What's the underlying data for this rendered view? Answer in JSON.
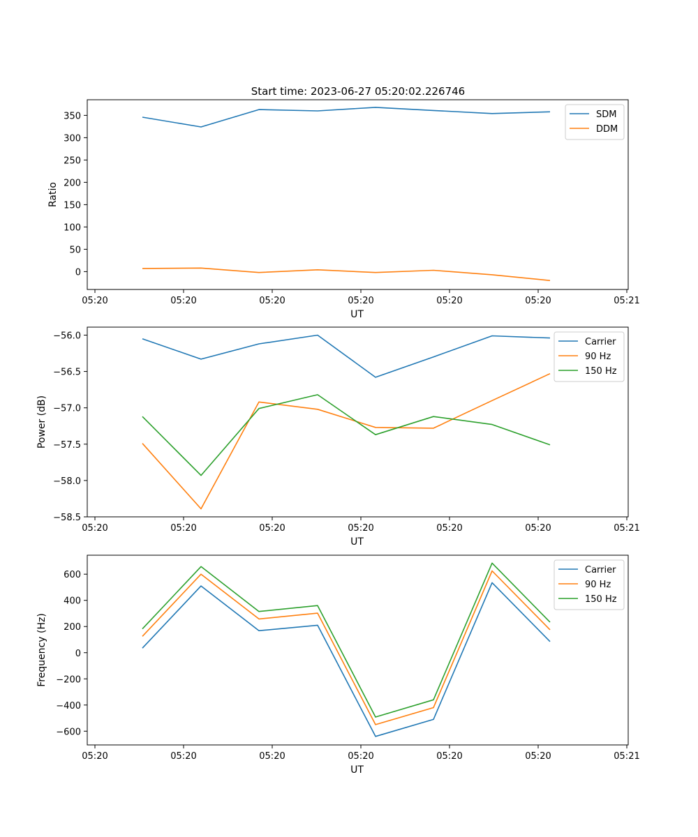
{
  "chart_data": [
    {
      "type": "line",
      "title": "Start time: 2023-06-27 05:20:02.226746",
      "xlabel": "UT",
      "ylabel": "Ratio",
      "x_tick_labels": [
        "05:20",
        "05:20",
        "05:20",
        "05:20",
        "05:20",
        "05:20",
        "05:20",
        "05:21"
      ],
      "y_ticks": [
        0,
        50,
        100,
        150,
        200,
        250,
        300,
        350
      ],
      "y_tick_labels": [
        "0",
        "50",
        "100",
        "150",
        "200",
        "250",
        "300",
        "350"
      ],
      "ylim": [
        -40,
        385
      ],
      "legend_position": "top-right",
      "series": [
        {
          "name": "SDM",
          "color": "#1f77b4",
          "values": [
            346,
            324,
            363,
            360,
            368,
            361,
            354,
            358
          ]
        },
        {
          "name": "DDM",
          "color": "#ff7f0e",
          "values": [
            7,
            8,
            -2,
            4,
            -2,
            3,
            -7,
            -20
          ]
        }
      ]
    },
    {
      "type": "line",
      "xlabel": "UT",
      "ylabel": "Power (dB)",
      "x_tick_labels": [
        "05:20",
        "05:20",
        "05:20",
        "05:20",
        "05:20",
        "05:20",
        "05:20",
        "05:21"
      ],
      "y_ticks": [
        -58.5,
        -58.0,
        -57.5,
        -57.0,
        -56.5,
        -56.0
      ],
      "y_tick_labels": [
        "−58.5",
        "−58.0",
        "−57.5",
        "−57.0",
        "−56.5",
        "−56.0"
      ],
      "ylim": [
        -58.5,
        -55.89
      ],
      "legend_position": "top-right",
      "series": [
        {
          "name": "Carrier",
          "color": "#1f77b4",
          "values": [
            -56.05,
            -56.33,
            -56.12,
            -56.0,
            -56.58,
            -56.3,
            -56.01,
            -56.04
          ]
        },
        {
          "name": "90 Hz",
          "color": "#ff7f0e",
          "values": [
            -57.49,
            -58.39,
            -56.92,
            -57.02,
            -57.27,
            -57.28,
            -56.9,
            -56.53
          ]
        },
        {
          "name": "150 Hz",
          "color": "#2ca02c",
          "values": [
            -57.12,
            -57.93,
            -57.01,
            -56.82,
            -57.37,
            -57.12,
            -57.23,
            -57.51
          ]
        }
      ]
    },
    {
      "type": "line",
      "xlabel": "UT",
      "ylabel": "Frequency (Hz)",
      "x_tick_labels": [
        "05:20",
        "05:20",
        "05:20",
        "05:20",
        "05:20",
        "05:20",
        "05:20",
        "05:21"
      ],
      "y_ticks": [
        -600,
        -400,
        -200,
        0,
        200,
        400,
        600
      ],
      "y_tick_labels": [
        "−600",
        "−400",
        "−200",
        "0",
        "200",
        "400",
        "600"
      ],
      "ylim": [
        -705,
        745
      ],
      "legend_position": "top-right",
      "series": [
        {
          "name": "Carrier",
          "color": "#1f77b4",
          "values": [
            35,
            510,
            168,
            210,
            -640,
            -510,
            535,
            85
          ]
        },
        {
          "name": "90 Hz",
          "color": "#ff7f0e",
          "values": [
            125,
            600,
            258,
            302,
            -550,
            -420,
            625,
            175
          ]
        },
        {
          "name": "150 Hz",
          "color": "#2ca02c",
          "values": [
            182,
            658,
            315,
            360,
            -492,
            -360,
            685,
            233
          ]
        }
      ]
    }
  ]
}
